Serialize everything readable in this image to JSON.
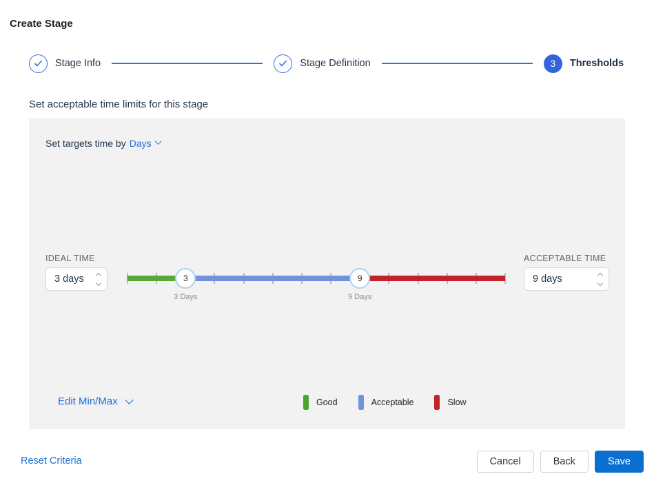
{
  "title": "Create Stage",
  "stepper": {
    "steps": [
      {
        "label": "Stage Info",
        "state": "complete"
      },
      {
        "label": "Stage Definition",
        "state": "complete"
      },
      {
        "label": "Thresholds",
        "state": "current",
        "number": "3"
      }
    ]
  },
  "section_heading": "Set acceptable time limits for this stage",
  "panel": {
    "targets_prefix": "Set targets time by",
    "targets_unit": "Days",
    "ideal": {
      "label": "IDEAL TIME",
      "value": "3 days"
    },
    "acceptable": {
      "label": "ACCEPTABLE TIME",
      "value": "9 days"
    },
    "edit_minmax": "Edit Min/Max",
    "legend": [
      {
        "label": "Good",
        "color": "#4ca52f"
      },
      {
        "label": "Acceptable",
        "color": "#7193dc"
      },
      {
        "label": "Slow",
        "color": "#c2222a"
      }
    ]
  },
  "slider": {
    "min": 1,
    "max": 14,
    "tick_step": 1,
    "handles": [
      {
        "value": 3,
        "display": "3",
        "label": "3 Days"
      },
      {
        "value": 9,
        "display": "9",
        "label": "9 Days"
      }
    ],
    "segments": [
      {
        "from": 1,
        "to": 3,
        "color": "#56a932",
        "name": "good"
      },
      {
        "from": 3,
        "to": 9,
        "color": "#7193dc",
        "name": "acceptable"
      },
      {
        "from": 9,
        "to": 14,
        "color": "#c2222a",
        "name": "slow"
      }
    ]
  },
  "footer": {
    "reset": "Reset Criteria",
    "cancel": "Cancel",
    "back": "Back",
    "save": "Save"
  },
  "colors": {
    "accent_blue": "#2f6ee3",
    "step_fill_blue": "#3464d9",
    "save_blue": "#0a6fd1",
    "panel_bg": "#f2f2f2",
    "handle_border": "#a9d3ee"
  }
}
